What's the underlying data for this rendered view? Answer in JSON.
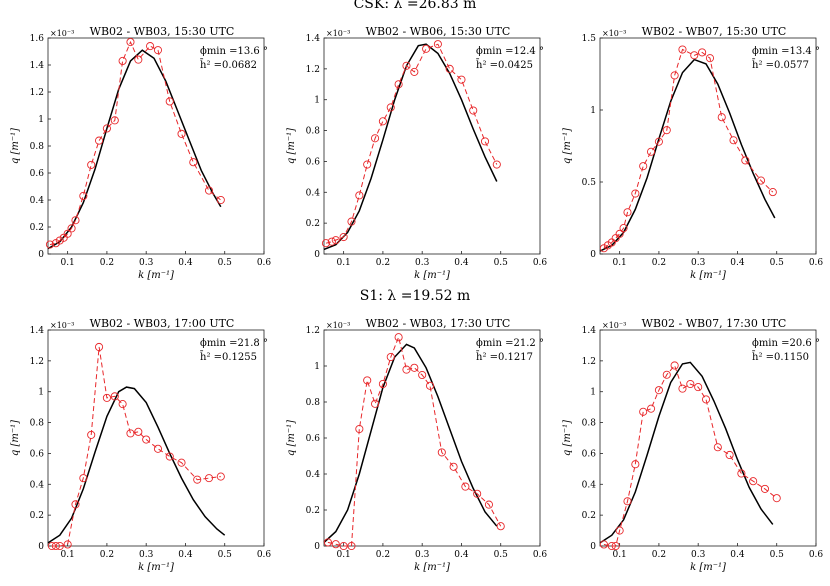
{
  "row_titles": [
    "CSK: λ =26.83 m",
    "S1: λ =19.52 m"
  ],
  "common": {
    "xlabel": "k [m⁻¹]",
    "ylabel": "q [m⁻¹]",
    "exponent": "×10⁻³",
    "xticks": [
      "0.1",
      "0.2",
      "0.3",
      "0.4",
      "0.5",
      "0.6"
    ],
    "model_color": "#000000",
    "data_color": "#e8272a"
  },
  "chart_data": [
    {
      "type": "line",
      "title": "WB02 - WB03, 15:30 UTC",
      "phi_label": "ϕmin",
      "phi_value": "=13.6 °",
      "h_label": "h̄²",
      "h_value": "=0.0682",
      "xlim": [
        0.05,
        0.6
      ],
      "ylim": [
        0,
        1.6
      ],
      "yticks": [
        "0",
        "0.2",
        "0.4",
        "0.6",
        "0.8",
        "1",
        "1.2",
        "1.4",
        "1.6"
      ],
      "model": {
        "x": [
          0.05,
          0.08,
          0.11,
          0.14,
          0.17,
          0.2,
          0.23,
          0.26,
          0.29,
          0.32,
          0.35,
          0.38,
          0.41,
          0.44,
          0.47,
          0.49
        ],
        "y": [
          0.04,
          0.09,
          0.2,
          0.38,
          0.63,
          0.93,
          1.22,
          1.43,
          1.51,
          1.45,
          1.28,
          1.06,
          0.84,
          0.62,
          0.45,
          0.35
        ]
      },
      "observed": {
        "x": [
          0.055,
          0.07,
          0.08,
          0.09,
          0.1,
          0.11,
          0.12,
          0.14,
          0.16,
          0.18,
          0.2,
          0.22,
          0.24,
          0.26,
          0.28,
          0.31,
          0.33,
          0.36,
          0.39,
          0.42,
          0.46,
          0.49
        ],
        "y": [
          0.07,
          0.08,
          0.1,
          0.12,
          0.15,
          0.19,
          0.25,
          0.43,
          0.66,
          0.84,
          0.93,
          0.99,
          1.43,
          1.57,
          1.44,
          1.54,
          1.51,
          1.13,
          0.89,
          0.68,
          0.47,
          0.4
        ]
      }
    },
    {
      "type": "line",
      "title": "WB02 - WB06, 15:30 UTC",
      "phi_label": "ϕmin",
      "phi_value": "=12.4 °",
      "h_label": "h̄²",
      "h_value": "=0.0425",
      "xlim": [
        0.05,
        0.6
      ],
      "ylim": [
        0,
        1.4
      ],
      "yticks": [
        "0",
        "0.2",
        "0.4",
        "0.6",
        "0.8",
        "1",
        "1.2",
        "1.4"
      ],
      "model": {
        "x": [
          0.05,
          0.08,
          0.11,
          0.14,
          0.17,
          0.2,
          0.23,
          0.26,
          0.29,
          0.31,
          0.34,
          0.37,
          0.4,
          0.43,
          0.46,
          0.49
        ],
        "y": [
          0.03,
          0.06,
          0.14,
          0.28,
          0.49,
          0.74,
          1.0,
          1.22,
          1.35,
          1.36,
          1.3,
          1.17,
          1.0,
          0.81,
          0.63,
          0.47
        ]
      },
      "observed": {
        "x": [
          0.055,
          0.07,
          0.08,
          0.1,
          0.12,
          0.14,
          0.16,
          0.18,
          0.2,
          0.22,
          0.24,
          0.26,
          0.28,
          0.31,
          0.34,
          0.37,
          0.4,
          0.43,
          0.46,
          0.49
        ],
        "y": [
          0.07,
          0.08,
          0.09,
          0.11,
          0.21,
          0.38,
          0.58,
          0.75,
          0.86,
          0.95,
          1.1,
          1.22,
          1.18,
          1.33,
          1.36,
          1.2,
          1.13,
          0.93,
          0.73,
          0.58
        ]
      }
    },
    {
      "type": "line",
      "title": "WB02 - WB07, 15:30 UTC",
      "phi_label": "ϕmin",
      "phi_value": "=13.4 °",
      "h_label": "h̄²",
      "h_value": "=0.0577",
      "xlim": [
        0.05,
        0.6
      ],
      "ylim": [
        0,
        1.5
      ],
      "yticks": [
        "0",
        "0.5",
        "1",
        "1.5"
      ],
      "model": {
        "x": [
          0.05,
          0.08,
          0.11,
          0.14,
          0.17,
          0.2,
          0.23,
          0.26,
          0.29,
          0.32,
          0.35,
          0.38,
          0.41,
          0.44,
          0.47,
          0.495
        ],
        "y": [
          0.02,
          0.06,
          0.15,
          0.31,
          0.53,
          0.8,
          1.06,
          1.26,
          1.35,
          1.32,
          1.18,
          0.98,
          0.76,
          0.56,
          0.38,
          0.25
        ]
      },
      "observed": {
        "x": [
          0.06,
          0.07,
          0.08,
          0.09,
          0.1,
          0.11,
          0.12,
          0.14,
          0.16,
          0.18,
          0.2,
          0.22,
          0.24,
          0.26,
          0.29,
          0.31,
          0.33,
          0.36,
          0.39,
          0.42,
          0.46,
          0.49
        ],
        "y": [
          0.04,
          0.06,
          0.08,
          0.11,
          0.14,
          0.18,
          0.29,
          0.42,
          0.61,
          0.71,
          0.78,
          0.86,
          1.24,
          1.42,
          1.38,
          1.4,
          1.36,
          0.95,
          0.79,
          0.65,
          0.51,
          0.43
        ]
      }
    },
    {
      "type": "line",
      "title": "WB02 - WB03, 17:00 UTC",
      "phi_label": "ϕmin",
      "phi_value": "=21.8 °",
      "h_label": "h̄²",
      "h_value": "=0.1255",
      "xlim": [
        0.05,
        0.6
      ],
      "ylim": [
        0,
        1.4
      ],
      "yticks": [
        "0",
        "0.2",
        "0.4",
        "0.6",
        "0.8",
        "1",
        "1.2",
        "1.4"
      ],
      "model": {
        "x": [
          0.05,
          0.08,
          0.11,
          0.14,
          0.17,
          0.2,
          0.23,
          0.25,
          0.27,
          0.3,
          0.33,
          0.36,
          0.39,
          0.42,
          0.45,
          0.48,
          0.5
        ],
        "y": [
          0.02,
          0.07,
          0.18,
          0.37,
          0.61,
          0.84,
          1.0,
          1.03,
          1.02,
          0.93,
          0.77,
          0.6,
          0.44,
          0.3,
          0.19,
          0.11,
          0.07
        ]
      },
      "observed": {
        "x": [
          0.06,
          0.07,
          0.08,
          0.1,
          0.12,
          0.14,
          0.16,
          0.18,
          0.2,
          0.22,
          0.24,
          0.26,
          0.28,
          0.3,
          0.33,
          0.36,
          0.39,
          0.43,
          0.46,
          0.49
        ],
        "y": [
          0.0,
          0.0,
          0.0,
          0.01,
          0.27,
          0.44,
          0.72,
          1.29,
          0.96,
          0.97,
          0.92,
          0.73,
          0.74,
          0.69,
          0.63,
          0.58,
          0.54,
          0.43,
          0.44,
          0.45
        ]
      }
    },
    {
      "type": "line",
      "title": "WB02 - WB03, 17:30 UTC",
      "phi_label": "ϕmin",
      "phi_value": "=21.2 °",
      "h_label": "h̄²",
      "h_value": "=0.1217",
      "xlim": [
        0.05,
        0.6
      ],
      "ylim": [
        0,
        1.2
      ],
      "yticks": [
        "0",
        "0.2",
        "0.4",
        "0.6",
        "0.8",
        "1",
        "1.2"
      ],
      "model": {
        "x": [
          0.05,
          0.08,
          0.11,
          0.14,
          0.17,
          0.2,
          0.23,
          0.26,
          0.28,
          0.31,
          0.34,
          0.37,
          0.4,
          0.43,
          0.46,
          0.49
        ],
        "y": [
          0.02,
          0.08,
          0.2,
          0.4,
          0.64,
          0.88,
          1.05,
          1.12,
          1.1,
          0.99,
          0.83,
          0.65,
          0.47,
          0.32,
          0.19,
          0.11
        ]
      },
      "observed": {
        "x": [
          0.06,
          0.08,
          0.1,
          0.12,
          0.14,
          0.16,
          0.18,
          0.2,
          0.22,
          0.24,
          0.26,
          0.28,
          0.3,
          0.32,
          0.35,
          0.38,
          0.41,
          0.44,
          0.47,
          0.5
        ],
        "y": [
          0.02,
          0.01,
          0.0,
          0.0,
          0.65,
          0.92,
          0.79,
          0.9,
          1.05,
          1.16,
          0.98,
          0.99,
          0.95,
          0.89,
          0.52,
          0.44,
          0.33,
          0.29,
          0.23,
          0.11
        ]
      }
    },
    {
      "type": "line",
      "title": "WB02 - WB07, 17:30 UTC",
      "phi_label": "ϕmin",
      "phi_value": "=20.6 °",
      "h_label": "h̄²",
      "h_value": "=0.1150",
      "xlim": [
        0.05,
        0.6
      ],
      "ylim": [
        0,
        1.4
      ],
      "yticks": [
        "0",
        "0.2",
        "0.4",
        "0.6",
        "0.8",
        "1",
        "1.2",
        "1.4"
      ],
      "model": {
        "x": [
          0.05,
          0.08,
          0.11,
          0.14,
          0.17,
          0.2,
          0.23,
          0.26,
          0.28,
          0.31,
          0.34,
          0.37,
          0.4,
          0.43,
          0.46,
          0.49
        ],
        "y": [
          0.02,
          0.07,
          0.17,
          0.35,
          0.59,
          0.84,
          1.06,
          1.18,
          1.19,
          1.1,
          0.94,
          0.76,
          0.56,
          0.38,
          0.24,
          0.14
        ]
      },
      "observed": {
        "x": [
          0.06,
          0.08,
          0.09,
          0.1,
          0.12,
          0.14,
          0.16,
          0.18,
          0.2,
          0.22,
          0.24,
          0.26,
          0.28,
          0.3,
          0.32,
          0.35,
          0.38,
          0.41,
          0.44,
          0.47,
          0.5
        ],
        "y": [
          0.01,
          0.0,
          0.0,
          0.1,
          0.29,
          0.53,
          0.87,
          0.89,
          1.01,
          1.11,
          1.17,
          1.02,
          1.05,
          1.03,
          0.95,
          0.64,
          0.59,
          0.47,
          0.42,
          0.37,
          0.31
        ]
      }
    }
  ]
}
